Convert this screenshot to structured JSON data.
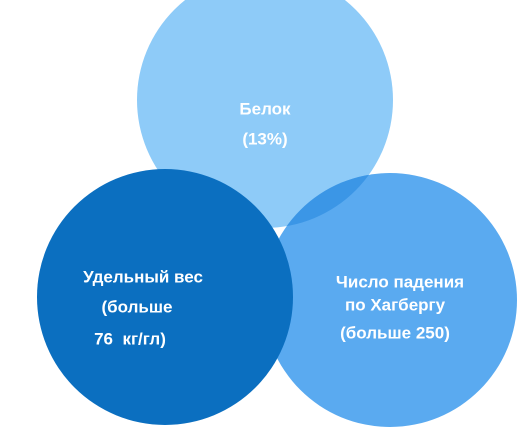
{
  "nodes": [
    {
      "lines": [
        "Белок",
        "(13%)"
      ]
    },
    {
      "lines": [
        "Удельный вес",
        "(больше",
        "76  кг/гл)"
      ]
    },
    {
      "lines": [
        "Число падения",
        "по Хагбергу",
        "(больше 250)"
      ]
    }
  ]
}
